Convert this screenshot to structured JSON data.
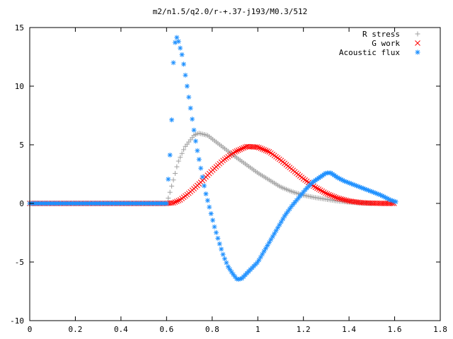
{
  "chart_data": {
    "type": "scatter",
    "title": "m2/n1.5/q2.0/r-+.37-j193/M0.3/512",
    "xlabel": "",
    "ylabel": "",
    "xlim": [
      0,
      1.8
    ],
    "ylim": [
      -10,
      15
    ],
    "xticks": [
      "0",
      "0.2",
      "0.4",
      "0.6",
      "0.8",
      "1",
      "1.2",
      "1.4",
      "1.6",
      "1.8"
    ],
    "yticks": [
      "-10",
      "-5",
      "0",
      "5",
      "10",
      "15"
    ],
    "grid": false,
    "legend_position": "top-right",
    "series": [
      {
        "name": "R stress",
        "marker": "+",
        "color": "#a0a0a0",
        "curve": [
          [
            0.0,
            0
          ],
          [
            0.6,
            0
          ],
          [
            0.61,
            0.6
          ],
          [
            0.63,
            2.0
          ],
          [
            0.65,
            3.5
          ],
          [
            0.68,
            4.8
          ],
          [
            0.72,
            5.8
          ],
          [
            0.74,
            6.0
          ],
          [
            0.78,
            5.8
          ],
          [
            0.82,
            5.2
          ],
          [
            0.86,
            4.6
          ],
          [
            0.9,
            4.0
          ],
          [
            0.95,
            3.3
          ],
          [
            1.0,
            2.6
          ],
          [
            1.05,
            2.0
          ],
          [
            1.1,
            1.4
          ],
          [
            1.15,
            1.0
          ],
          [
            1.2,
            0.7
          ],
          [
            1.25,
            0.5
          ],
          [
            1.3,
            0.35
          ],
          [
            1.35,
            0.2
          ],
          [
            1.4,
            0.1
          ],
          [
            1.45,
            0.03
          ],
          [
            1.5,
            0
          ]
        ]
      },
      {
        "name": "G work",
        "marker": "x",
        "color": "#ff0000",
        "curve": [
          [
            0.0,
            0
          ],
          [
            0.6,
            0
          ],
          [
            0.63,
            0.05
          ],
          [
            0.66,
            0.3
          ],
          [
            0.7,
            0.9
          ],
          [
            0.75,
            1.8
          ],
          [
            0.8,
            2.8
          ],
          [
            0.85,
            3.7
          ],
          [
            0.9,
            4.4
          ],
          [
            0.95,
            4.85
          ],
          [
            1.0,
            4.8
          ],
          [
            1.05,
            4.4
          ],
          [
            1.1,
            3.7
          ],
          [
            1.15,
            2.9
          ],
          [
            1.2,
            2.1
          ],
          [
            1.25,
            1.4
          ],
          [
            1.3,
            0.85
          ],
          [
            1.35,
            0.45
          ],
          [
            1.4,
            0.2
          ],
          [
            1.45,
            0.07
          ],
          [
            1.5,
            0.02
          ],
          [
            1.55,
            0
          ],
          [
            1.6,
            0
          ]
        ]
      },
      {
        "name": "Acoustic flux",
        "marker": "*",
        "color": "#1e90ff",
        "curve": [
          [
            0.0,
            0
          ],
          [
            0.6,
            0
          ],
          [
            0.62,
            5.5
          ],
          [
            0.63,
            12.0
          ],
          [
            0.64,
            14.3
          ],
          [
            0.65,
            14.0
          ],
          [
            0.67,
            12.5
          ],
          [
            0.69,
            10.0
          ],
          [
            0.71,
            7.5
          ],
          [
            0.73,
            5.0
          ],
          [
            0.75,
            3.0
          ],
          [
            0.77,
            1.0
          ],
          [
            0.79,
            -0.5
          ],
          [
            0.81,
            -2.0
          ],
          [
            0.83,
            -3.3
          ],
          [
            0.85,
            -4.5
          ],
          [
            0.87,
            -5.4
          ],
          [
            0.89,
            -6.0
          ],
          [
            0.91,
            -6.5
          ],
          [
            0.93,
            -6.4
          ],
          [
            0.95,
            -6.0
          ],
          [
            0.97,
            -5.6
          ],
          [
            1.0,
            -5.0
          ],
          [
            1.03,
            -4.0
          ],
          [
            1.06,
            -3.0
          ],
          [
            1.09,
            -2.0
          ],
          [
            1.12,
            -1.0
          ],
          [
            1.15,
            -0.2
          ],
          [
            1.18,
            0.5
          ],
          [
            1.21,
            1.2
          ],
          [
            1.24,
            1.8
          ],
          [
            1.27,
            2.2
          ],
          [
            1.3,
            2.6
          ],
          [
            1.32,
            2.6
          ],
          [
            1.35,
            2.2
          ],
          [
            1.38,
            1.9
          ],
          [
            1.42,
            1.6
          ],
          [
            1.46,
            1.3
          ],
          [
            1.5,
            1.0
          ],
          [
            1.54,
            0.7
          ],
          [
            1.58,
            0.3
          ],
          [
            1.61,
            0.1
          ]
        ]
      }
    ]
  }
}
